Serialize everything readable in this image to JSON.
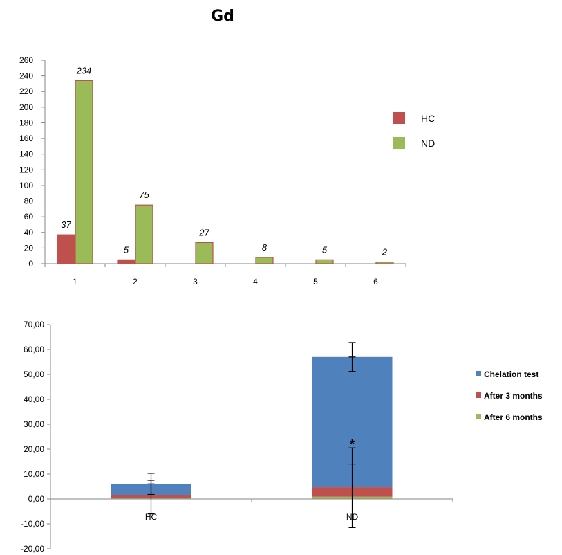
{
  "figure_title": "Gd",
  "chart_data": [
    {
      "type": "bar",
      "categories": [
        "1",
        "2",
        "3",
        "4",
        "5",
        "6"
      ],
      "series": [
        {
          "name": "HC",
          "values": [
            37,
            5,
            0,
            0,
            0,
            0
          ]
        },
        {
          "name": "ND",
          "values": [
            234,
            75,
            27,
            8,
            5,
            2
          ]
        }
      ],
      "data_labels": [
        {
          "text": "37",
          "category": "1",
          "series": "HC"
        },
        {
          "text": "234",
          "category": "1",
          "series": "ND"
        },
        {
          "text": "5",
          "category": "2",
          "series": "HC"
        },
        {
          "text": "75",
          "category": "2",
          "series": "ND"
        },
        {
          "text": "27",
          "category": "3",
          "series": "ND"
        },
        {
          "text": "8",
          "category": "4",
          "series": "ND"
        },
        {
          "text": "5",
          "category": "5",
          "series": "ND"
        },
        {
          "text": "2",
          "category": "6",
          "series": "ND"
        }
      ],
      "y_ticks": [
        "0",
        "20",
        "40",
        "60",
        "80",
        "100",
        "120",
        "140",
        "160",
        "180",
        "200",
        "220",
        "240",
        "260"
      ],
      "ylim": [
        0,
        260
      ],
      "legend_position": "right",
      "grid": false,
      "colors": {
        "HC": "#c0504d",
        "ND": "#9bbb59",
        "bar_border": "#c0504d"
      }
    },
    {
      "type": "bar",
      "stacked": true,
      "categories": [
        "HC",
        "ND"
      ],
      "series": [
        {
          "name": "Chelation test",
          "values": [
            4.5,
            52.3
          ]
        },
        {
          "name": "After 3 months",
          "values": [
            1.2,
            3.8
          ]
        },
        {
          "name": "After 6 months",
          "values": [
            0.3,
            0.9
          ]
        }
      ],
      "error_bars": [
        {
          "category": "HC",
          "center": 6.0,
          "low": 1.8,
          "high": 10.3
        },
        {
          "category": "HC",
          "center": 6.0,
          "low": -6.0,
          "high": 7.5
        },
        {
          "category": "ND",
          "center": 57.0,
          "low": 51.2,
          "high": 62.8
        },
        {
          "category": "ND",
          "center": 14.0,
          "low": -11.5,
          "high": 20.5
        }
      ],
      "annotations": [
        {
          "text": "*",
          "category": "ND",
          "y": 23
        }
      ],
      "y_ticks": [
        "70,00",
        "60,00",
        "50,00",
        "40,00",
        "30,00",
        "20,00",
        "10,00",
        "0,00",
        "-10,00",
        "-20,00"
      ],
      "ylim": [
        -20,
        70
      ],
      "legend_position": "right",
      "grid": false,
      "colors": {
        "Chelation test": "#4f81bd",
        "After 3 months": "#c0504d",
        "After 6 months": "#9bbb59"
      }
    }
  ]
}
